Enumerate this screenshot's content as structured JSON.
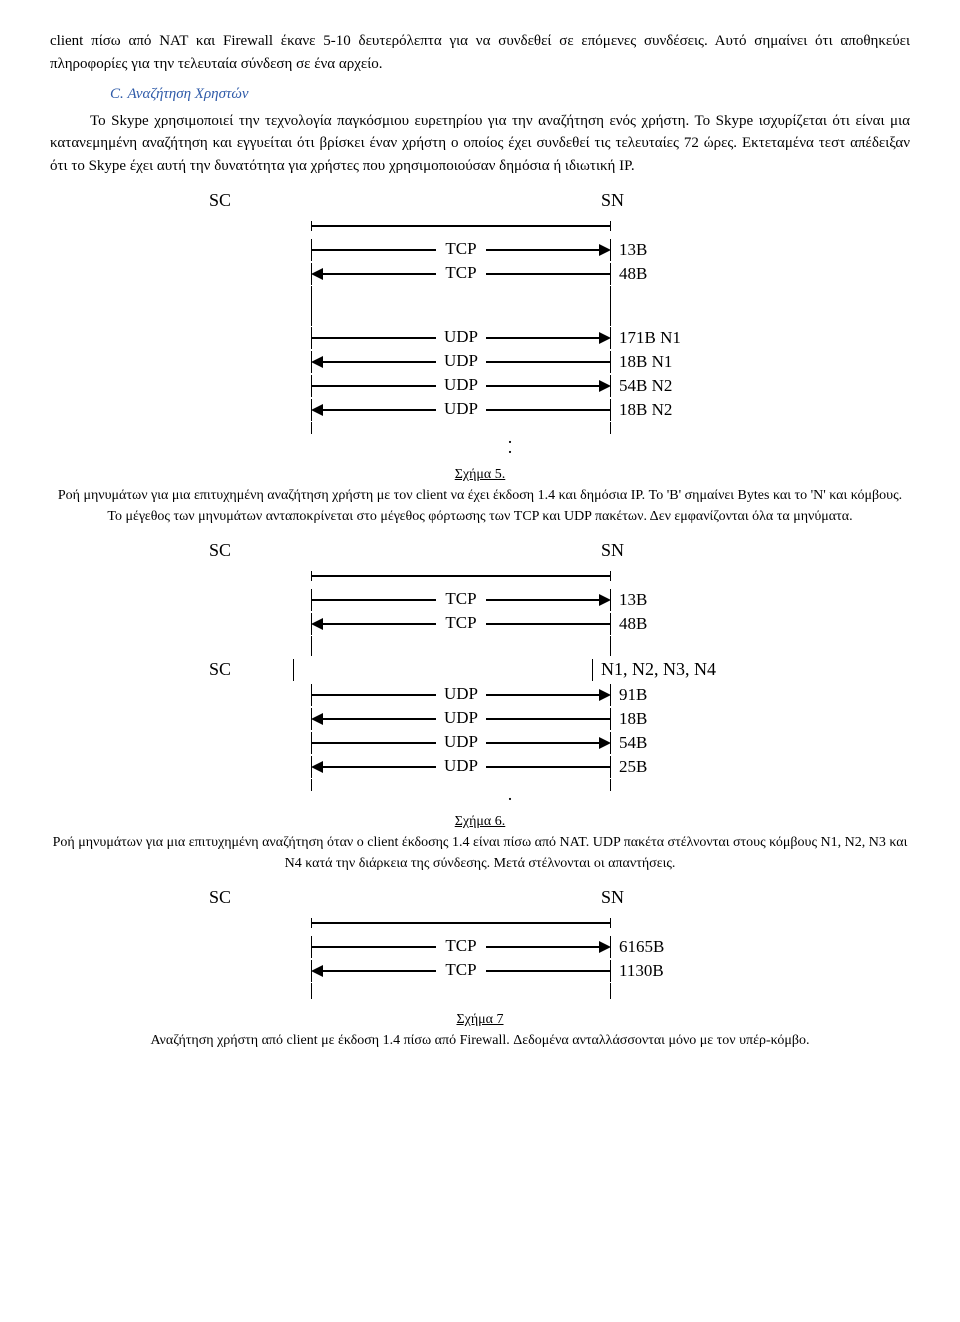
{
  "paragraphs": {
    "intro": "client πίσω από NAT και Firewall έκανε 5-10 δευτερόλεπτα για να συνδεθεί σε επόμενες συνδέσεις. Αυτό σημαίνει ότι αποθηκεύει πληροφορίες για την τελευταία σύνδεση σε ένα αρχείο.",
    "section_c_title": "C. Αναζήτηση Χρηστών",
    "section_c_body": "Το Skype χρησιμοποιεί την τεχνολογία παγκόσμιου ευρετηρίου για την αναζήτηση ενός χρήστη. Το Skype ισχυρίζεται ότι είναι μια κατανεμημένη αναζήτηση και εγγυείται ότι βρίσκει έναν χρήστη ο οποίος έχει συνδεθεί τις τελευταίες 72 ώρες. Εκτεταμένα τεστ απέδειξαν ότι το Skype έχει αυτή την δυνατότητα για χρήστες που χρησιμοποιούσαν δημόσια ή ιδιωτική IP.",
    "indent_word": "Το Skype"
  },
  "figures": {
    "fig5": {
      "title": "Σχήμα 5.",
      "caption": "Ροή μηνυμάτων για μια επιτυχημένη αναζήτηση χρήστη με τον client να έχει έκδοση 1.4 και δημόσια IP. Το 'B' σημαίνει Bytes και το 'N' και κόμβους. Το μέγεθος των μηνυμάτων ανταποκρίνεται στο μέγεθος φόρτωσης των TCP και UDP πακέτων. Δεν εμφανίζονται όλα τα μηνύματα.",
      "left_label": "SC",
      "right_label": "SN",
      "arrow_color": "#000000",
      "font_family": "Times New Roman",
      "messages": [
        {
          "protocol": "TCP",
          "direction": "right",
          "bytes": "13B"
        },
        {
          "protocol": "TCP",
          "direction": "left",
          "bytes": "48B"
        }
      ],
      "messages2": [
        {
          "protocol": "UDP",
          "direction": "right",
          "bytes": "171B N1"
        },
        {
          "protocol": "UDP",
          "direction": "left",
          "bytes": "18B N1"
        },
        {
          "protocol": "UDP",
          "direction": "right",
          "bytes": "54B N2"
        },
        {
          "protocol": "UDP",
          "direction": "left",
          "bytes": "18B N2"
        }
      ]
    },
    "fig6": {
      "title": "Σχήμα 6.",
      "caption": "Ροή μηνυμάτων για μια επιτυχημένη αναζήτηση όταν ο client έκδοσης 1.4 είναι πίσω από NAT. UDP πακέτα στέλνονται στους κόμβους N1, N2, N3 και N4 κατά την διάρκεια της σύνδεσης. Μετά στέλνονται οι απαντήσεις.",
      "left_label": "SC",
      "right_label": "SN",
      "left_label2": "SC",
      "right_label2": "N1, N2, N3, N4",
      "messages": [
        {
          "protocol": "TCP",
          "direction": "right",
          "bytes": "13B"
        },
        {
          "protocol": "TCP",
          "direction": "left",
          "bytes": "48B"
        }
      ],
      "messages2": [
        {
          "protocol": "UDP",
          "direction": "right",
          "bytes": "91B"
        },
        {
          "protocol": "UDP",
          "direction": "left",
          "bytes": "18B"
        },
        {
          "protocol": "UDP",
          "direction": "right",
          "bytes": "54B"
        },
        {
          "protocol": "UDP",
          "direction": "left",
          "bytes": "25B"
        }
      ]
    },
    "fig7": {
      "title": "Σχήμα 7",
      "caption": "Αναζήτηση χρήστη από client με έκδοση 1.4 πίσω από Firewall. Δεδομένα ανταλλάσσονται μόνο με τον υπέρ-κόμβο.",
      "left_label": "SC",
      "right_label": "SN",
      "messages": [
        {
          "protocol": "TCP",
          "direction": "right",
          "bytes": "6165B"
        },
        {
          "protocol": "TCP",
          "direction": "left",
          "bytes": "1130B"
        }
      ]
    }
  },
  "style": {
    "heading_color": "#2e5aa8",
    "text_color": "#000000",
    "background": "#ffffff",
    "line_stroke_width": 2,
    "arrow_head_size": 8
  }
}
